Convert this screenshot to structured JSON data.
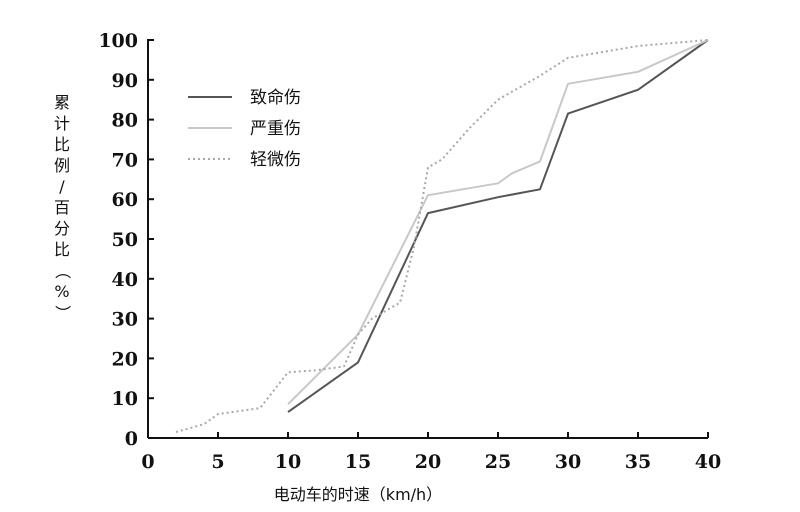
{
  "chart_data": {
    "type": "line",
    "title": "",
    "xlabel": "电动车的时速（km/h）",
    "ylabel": "累计比例/百分比（%）",
    "xlim": [
      0,
      40
    ],
    "ylim": [
      0,
      100
    ],
    "x_ticks": [
      "0",
      "5",
      "10",
      "15",
      "20",
      "25",
      "30",
      "35",
      "40"
    ],
    "y_ticks": [
      "0",
      "10",
      "20",
      "30",
      "40",
      "50",
      "60",
      "70",
      "80",
      "90",
      "100"
    ],
    "grid": false,
    "legend_position": "top-left",
    "series": [
      {
        "name": "致命伤",
        "color": "#555555",
        "dash": "solid",
        "points": [
          [
            10,
            6.5
          ],
          [
            15,
            19
          ],
          [
            20,
            56.5
          ],
          [
            25,
            60.5
          ],
          [
            28,
            62.5
          ],
          [
            30,
            81.5
          ],
          [
            35,
            87.5
          ],
          [
            40,
            100
          ]
        ]
      },
      {
        "name": "严重伤",
        "color": "#c8c8c8",
        "dash": "solid",
        "points": [
          [
            10,
            8.5
          ],
          [
            15,
            26
          ],
          [
            20,
            61
          ],
          [
            25,
            64
          ],
          [
            26,
            66.5
          ],
          [
            28,
            69.5
          ],
          [
            30,
            89
          ],
          [
            35,
            92
          ],
          [
            40,
            100
          ]
        ]
      },
      {
        "name": "轻微伤",
        "color": "#a8a8a8",
        "dash": "dotted",
        "points": [
          [
            2,
            1.5
          ],
          [
            3,
            2.5
          ],
          [
            4,
            3.5
          ],
          [
            5,
            6
          ],
          [
            6,
            6.5
          ],
          [
            8,
            7.5
          ],
          [
            10,
            16.5
          ],
          [
            12,
            17
          ],
          [
            14,
            18
          ],
          [
            15,
            26
          ],
          [
            16,
            30
          ],
          [
            18,
            34
          ],
          [
            19,
            48
          ],
          [
            20,
            68
          ],
          [
            21,
            70
          ],
          [
            23,
            78
          ],
          [
            25,
            85
          ],
          [
            28,
            91
          ],
          [
            30,
            95.5
          ],
          [
            35,
            98.5
          ],
          [
            40,
            100
          ]
        ]
      }
    ]
  }
}
